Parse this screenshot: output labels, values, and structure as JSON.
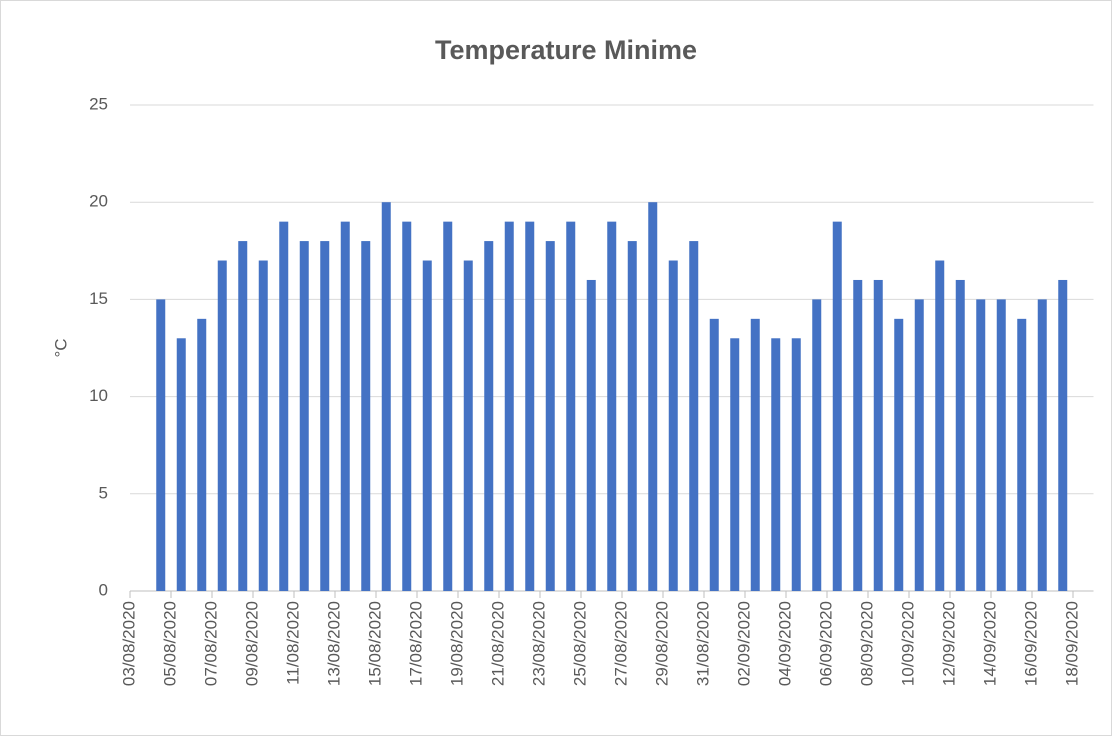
{
  "chart_data": {
    "type": "bar",
    "title": "Temperature Minime",
    "y_label": "°C",
    "color": "#4472c4",
    "grid": true,
    "x": [
      "04/08/2020",
      "05/08/2020",
      "06/08/2020",
      "07/08/2020",
      "08/08/2020",
      "09/08/2020",
      "10/08/2020",
      "11/08/2020",
      "12/08/2020",
      "13/08/2020",
      "14/08/2020",
      "15/08/2020",
      "16/08/2020",
      "17/08/2020",
      "18/08/2020",
      "19/08/2020",
      "20/08/2020",
      "21/08/2020",
      "22/08/2020",
      "23/08/2020",
      "24/08/2020",
      "25/08/2020",
      "26/08/2020",
      "27/08/2020",
      "28/08/2020",
      "29/08/2020",
      "30/08/2020",
      "31/08/2020",
      "01/09/2020",
      "02/09/2020",
      "03/09/2020",
      "04/09/2020",
      "05/09/2020",
      "06/09/2020",
      "07/09/2020",
      "08/09/2020",
      "09/09/2020",
      "10/09/2020",
      "11/09/2020",
      "12/09/2020",
      "13/09/2020",
      "14/09/2020",
      "15/09/2020",
      "16/09/2020",
      "17/09/2020"
    ],
    "values": [
      15,
      13,
      14,
      17,
      18,
      17,
      19,
      18,
      18,
      19,
      18,
      20,
      19,
      17,
      19,
      17,
      18,
      19,
      19,
      18,
      19,
      16,
      19,
      18,
      20,
      17,
      18,
      14,
      13,
      14,
      13,
      13,
      15,
      19,
      16,
      16,
      14,
      15,
      17,
      16,
      15,
      15,
      14,
      15,
      16
    ],
    "xlim": [
      "03/08/2020",
      "18/09/2020"
    ],
    "xticks": [
      "03/08/2020",
      "05/08/2020",
      "07/08/2020",
      "09/08/2020",
      "11/08/2020",
      "13/08/2020",
      "15/08/2020",
      "17/08/2020",
      "19/08/2020",
      "21/08/2020",
      "23/08/2020",
      "25/08/2020",
      "27/08/2020",
      "29/08/2020",
      "31/08/2020",
      "02/09/2020",
      "04/09/2020",
      "06/09/2020",
      "08/09/2020",
      "10/09/2020",
      "12/09/2020",
      "14/09/2020",
      "16/09/2020",
      "18/09/2020"
    ],
    "ylim": [
      0,
      25
    ],
    "yticks": [
      0,
      5,
      10,
      15,
      20,
      25
    ]
  }
}
